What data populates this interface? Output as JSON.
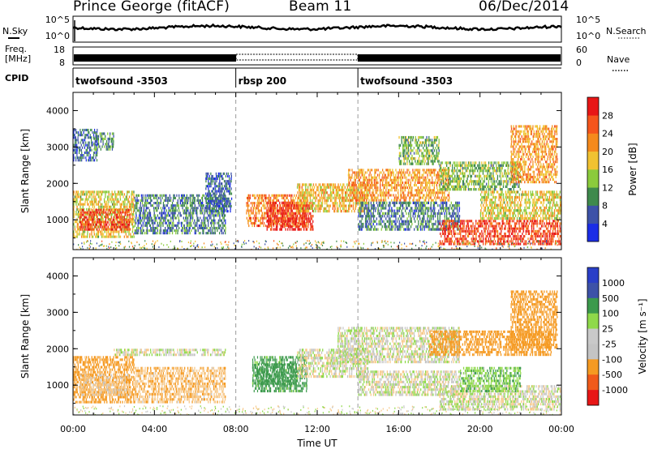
{
  "header": {
    "station": "Prince George (fitACF)",
    "beam": "Beam 11",
    "date": "06/Dec/2014"
  },
  "noise_panel": {
    "left_label": "N.Sky",
    "right_label": "N.Search",
    "left_ticks": [
      "10^5",
      "10^0"
    ],
    "right_ticks": [
      "10^5",
      "10^0"
    ]
  },
  "freq_panel": {
    "left_label_1": "Freq.",
    "left_label_2": "[MHz]",
    "right_label": "Nave",
    "left_ticks": [
      "18",
      "8"
    ],
    "right_ticks": [
      "60",
      "0"
    ]
  },
  "cpid": {
    "label": "CPID",
    "segments": [
      {
        "name": "twofsound -3503",
        "start_hour": 0,
        "end_hour": 8
      },
      {
        "name": "rbsp 200",
        "start_hour": 8,
        "end_hour": 14
      },
      {
        "name": "twofsound -3503",
        "start_hour": 14,
        "end_hour": 24
      }
    ]
  },
  "x_axis": {
    "label": "Time UT",
    "ticks": [
      "00:00",
      "04:00",
      "08:00",
      "12:00",
      "16:00",
      "20:00",
      "00:00"
    ]
  },
  "colors": {
    "power_scale": [
      "#1b2de6",
      "#3d52a8",
      "#3f8a4c",
      "#8bcb3c",
      "#f1c231",
      "#f58a1c",
      "#f5551c",
      "#e81616"
    ],
    "velocity_scale": [
      "#e81616",
      "#f05a1a",
      "#f59a22",
      "#f7c98a",
      "#c9c9c9",
      "#c4c4c4",
      "#8fd94a",
      "#3c9a4c",
      "#3d52a8",
      "#2a3fc8"
    ]
  },
  "chart_data": [
    {
      "type": "heatmap",
      "title": "",
      "xlabel": "Time UT",
      "ylabel": "Slant Range [km]",
      "x_range_hours": [
        0,
        24
      ],
      "ylim": [
        180,
        4500
      ],
      "yticks": [
        "1000",
        "2000",
        "3000",
        "4000"
      ],
      "colorbar": {
        "label": "Power [dB]",
        "ticks": [
          "4",
          "8",
          "12",
          "16",
          "20",
          "24",
          "28"
        ],
        "range": [
          0,
          30
        ]
      },
      "regions": [
        {
          "t0": 0.0,
          "t1": 3.0,
          "r0": 500,
          "r1": 1800,
          "value": 16
        },
        {
          "t0": 0.3,
          "t1": 2.8,
          "r0": 700,
          "r1": 1300,
          "value": 26
        },
        {
          "t0": 0.0,
          "t1": 1.2,
          "r0": 2600,
          "r1": 3500,
          "value": 6
        },
        {
          "t0": 1.0,
          "t1": 2.0,
          "r0": 2900,
          "r1": 3400,
          "value": 10
        },
        {
          "t0": 3.0,
          "t1": 7.5,
          "r0": 600,
          "r1": 1700,
          "value": 8
        },
        {
          "t0": 6.5,
          "t1": 7.8,
          "r0": 1200,
          "r1": 2300,
          "value": 6
        },
        {
          "t0": 8.5,
          "t1": 11.5,
          "r0": 800,
          "r1": 1700,
          "value": 22
        },
        {
          "t0": 9.5,
          "t1": 11.8,
          "r0": 700,
          "r1": 1500,
          "value": 28
        },
        {
          "t0": 11.0,
          "t1": 14.5,
          "r0": 1200,
          "r1": 2000,
          "value": 18
        },
        {
          "t0": 13.5,
          "t1": 18.5,
          "r0": 1500,
          "r1": 2400,
          "value": 20
        },
        {
          "t0": 14.0,
          "t1": 19.0,
          "r0": 700,
          "r1": 1500,
          "value": 8
        },
        {
          "t0": 18.0,
          "t1": 22.0,
          "r0": 1800,
          "r1": 2600,
          "value": 12
        },
        {
          "t0": 18.0,
          "t1": 24.0,
          "r0": 300,
          "r1": 1000,
          "value": 26
        },
        {
          "t0": 20.0,
          "t1": 24.0,
          "r0": 1000,
          "r1": 1800,
          "value": 16
        },
        {
          "t0": 21.5,
          "t1": 23.8,
          "r0": 2000,
          "r1": 3600,
          "value": 20
        },
        {
          "t0": 16.0,
          "t1": 18.0,
          "r0": 2500,
          "r1": 3300,
          "value": 12
        }
      ]
    },
    {
      "type": "heatmap",
      "title": "",
      "xlabel": "Time UT",
      "ylabel": "Slant Range [km]",
      "x_range_hours": [
        0,
        24
      ],
      "ylim": [
        180,
        4500
      ],
      "yticks": [
        "1000",
        "2000",
        "3000",
        "4000"
      ],
      "colorbar": {
        "label": "Velocity [m s^-1]",
        "ticks": [
          "1000",
          "500",
          "100",
          "25",
          "-25",
          "-100",
          "-500",
          "-1000"
        ],
        "range": [
          -1000,
          1000
        ]
      },
      "regions": [
        {
          "t0": 0.0,
          "t1": 3.0,
          "r0": 500,
          "r1": 1800,
          "value": -150
        },
        {
          "t0": 0.3,
          "t1": 2.8,
          "r0": 700,
          "r1": 1300,
          "value": -50
        },
        {
          "t0": 3.0,
          "t1": 7.5,
          "r0": 500,
          "r1": 1500,
          "value": -80
        },
        {
          "t0": 2.0,
          "t1": 7.5,
          "r0": 1800,
          "r1": 2000,
          "value": 0
        },
        {
          "t0": 8.8,
          "t1": 11.5,
          "r0": 800,
          "r1": 1800,
          "value": 150
        },
        {
          "t0": 9.0,
          "t1": 11.0,
          "r0": 1000,
          "r1": 1600,
          "value": 300
        },
        {
          "t0": 11.0,
          "t1": 14.5,
          "r0": 1200,
          "r1": 2000,
          "value": 0
        },
        {
          "t0": 13.0,
          "t1": 19.0,
          "r0": 1600,
          "r1": 2600,
          "value": 0
        },
        {
          "t0": 14.0,
          "t1": 19.0,
          "r0": 700,
          "r1": 1400,
          "value": 0
        },
        {
          "t0": 18.0,
          "t1": 24.0,
          "r0": 300,
          "r1": 1000,
          "value": 0
        },
        {
          "t0": 17.5,
          "t1": 23.5,
          "r0": 1800,
          "r1": 2500,
          "value": -200
        },
        {
          "t0": 21.5,
          "t1": 23.8,
          "r0": 2000,
          "r1": 3600,
          "value": -400
        },
        {
          "t0": 19.0,
          "t1": 22.0,
          "r0": 800,
          "r1": 1500,
          "value": 80
        }
      ]
    }
  ]
}
